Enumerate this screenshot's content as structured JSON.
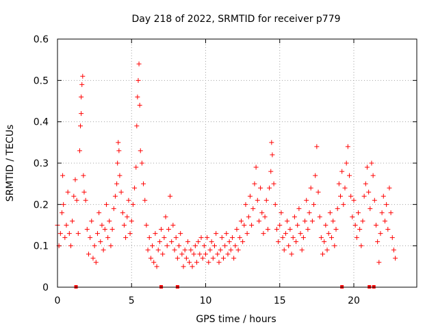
{
  "chart_data": {
    "type": "scatter",
    "title": "Day 218 of 2022, SRMTID for receiver p779",
    "xlabel": "GPS time / hours",
    "ylabel": "SRMTID / TECUs",
    "xlim": [
      0,
      24.25
    ],
    "ylim": [
      0,
      0.6
    ],
    "x_ticks": [
      "0",
      "5",
      "10",
      "15",
      "20"
    ],
    "x_tick_values": [
      0,
      5,
      10,
      15,
      20
    ],
    "y_ticks": [
      "0",
      "0.1",
      "0.2",
      "0.3",
      "0.4",
      "0.5",
      "0.6"
    ],
    "y_tick_values": [
      0,
      0.1,
      0.2,
      0.3,
      0.4,
      0.5,
      0.6
    ],
    "grid": true,
    "marker": "+",
    "color": "#ff0000",
    "series": [
      {
        "name": "SRMTID",
        "points": [
          [
            0.0,
            0.15
          ],
          [
            0.1,
            0.1
          ],
          [
            0.2,
            0.13
          ],
          [
            0.3,
            0.18
          ],
          [
            0.35,
            0.27
          ],
          [
            0.4,
            0.2
          ],
          [
            0.5,
            0.12
          ],
          [
            0.6,
            0.15
          ],
          [
            0.7,
            0.23
          ],
          [
            0.8,
            0.13
          ],
          [
            0.9,
            0.1
          ],
          [
            1.0,
            0.16
          ],
          [
            1.1,
            0.22
          ],
          [
            1.2,
            0.26
          ],
          [
            1.3,
            0.21
          ],
          [
            1.4,
            0.13
          ],
          [
            1.5,
            0.33
          ],
          [
            1.55,
            0.39
          ],
          [
            1.6,
            0.42
          ],
          [
            1.6,
            0.46
          ],
          [
            1.65,
            0.49
          ],
          [
            1.7,
            0.51
          ],
          [
            1.75,
            0.27
          ],
          [
            1.8,
            0.23
          ],
          [
            1.9,
            0.21
          ],
          [
            2.0,
            0.14
          ],
          [
            2.1,
            0.08
          ],
          [
            2.2,
            0.12
          ],
          [
            2.3,
            0.16
          ],
          [
            2.4,
            0.07
          ],
          [
            2.5,
            0.1
          ],
          [
            2.6,
            0.06
          ],
          [
            2.7,
            0.13
          ],
          [
            2.8,
            0.18
          ],
          [
            2.9,
            0.11
          ],
          [
            3.0,
            0.15
          ],
          [
            3.1,
            0.09
          ],
          [
            3.2,
            0.14
          ],
          [
            3.3,
            0.2
          ],
          [
            3.4,
            0.12
          ],
          [
            3.5,
            0.16
          ],
          [
            3.6,
            0.1
          ],
          [
            3.7,
            0.14
          ],
          [
            3.8,
            0.19
          ],
          [
            3.9,
            0.22
          ],
          [
            4.0,
            0.25
          ],
          [
            4.05,
            0.3
          ],
          [
            4.1,
            0.35
          ],
          [
            4.15,
            0.33
          ],
          [
            4.2,
            0.27
          ],
          [
            4.3,
            0.23
          ],
          [
            4.4,
            0.18
          ],
          [
            4.5,
            0.15
          ],
          [
            4.6,
            0.12
          ],
          [
            4.7,
            0.17
          ],
          [
            4.8,
            0.21
          ],
          [
            4.9,
            0.13
          ],
          [
            5.0,
            0.16
          ],
          [
            5.1,
            0.2
          ],
          [
            5.2,
            0.24
          ],
          [
            5.3,
            0.29
          ],
          [
            5.35,
            0.39
          ],
          [
            5.4,
            0.46
          ],
          [
            5.45,
            0.5
          ],
          [
            5.5,
            0.54
          ],
          [
            5.55,
            0.44
          ],
          [
            5.6,
            0.33
          ],
          [
            5.7,
            0.3
          ],
          [
            5.8,
            0.25
          ],
          [
            5.9,
            0.21
          ],
          [
            6.0,
            0.15
          ],
          [
            6.1,
            0.09
          ],
          [
            6.2,
            0.12
          ],
          [
            6.3,
            0.07
          ],
          [
            6.4,
            0.1
          ],
          [
            6.5,
            0.06
          ],
          [
            6.6,
            0.13
          ],
          [
            6.7,
            0.05
          ],
          [
            6.8,
            0.09
          ],
          [
            6.9,
            0.11
          ],
          [
            7.0,
            0.14
          ],
          [
            7.1,
            0.08
          ],
          [
            7.2,
            0.12
          ],
          [
            7.3,
            0.17
          ],
          [
            7.4,
            0.1
          ],
          [
            7.5,
            0.14
          ],
          [
            7.6,
            0.22
          ],
          [
            7.7,
            0.11
          ],
          [
            7.8,
            0.15
          ],
          [
            7.9,
            0.09
          ],
          [
            8.0,
            0.12
          ],
          [
            8.1,
            0.07
          ],
          [
            8.2,
            0.1
          ],
          [
            8.3,
            0.13
          ],
          [
            8.4,
            0.08
          ],
          [
            8.5,
            0.05
          ],
          [
            8.6,
            0.09
          ],
          [
            8.7,
            0.07
          ],
          [
            8.8,
            0.11
          ],
          [
            8.9,
            0.06
          ],
          [
            9.0,
            0.09
          ],
          [
            9.1,
            0.05
          ],
          [
            9.2,
            0.08
          ],
          [
            9.3,
            0.1
          ],
          [
            9.4,
            0.06
          ],
          [
            9.5,
            0.11
          ],
          [
            9.6,
            0.08
          ],
          [
            9.7,
            0.12
          ],
          [
            9.8,
            0.07
          ],
          [
            9.9,
            0.1
          ],
          [
            10.0,
            0.08
          ],
          [
            10.1,
            0.12
          ],
          [
            10.2,
            0.06
          ],
          [
            10.3,
            0.09
          ],
          [
            10.4,
            0.11
          ],
          [
            10.5,
            0.07
          ],
          [
            10.6,
            0.1
          ],
          [
            10.7,
            0.13
          ],
          [
            10.8,
            0.08
          ],
          [
            10.9,
            0.06
          ],
          [
            11.0,
            0.09
          ],
          [
            11.1,
            0.12
          ],
          [
            11.2,
            0.07
          ],
          [
            11.3,
            0.1
          ],
          [
            11.4,
            0.13
          ],
          [
            11.5,
            0.08
          ],
          [
            11.6,
            0.11
          ],
          [
            11.7,
            0.09
          ],
          [
            11.8,
            0.12
          ],
          [
            11.9,
            0.07
          ],
          [
            12.0,
            0.1
          ],
          [
            12.1,
            0.14
          ],
          [
            12.2,
            0.09
          ],
          [
            12.3,
            0.12
          ],
          [
            12.4,
            0.16
          ],
          [
            12.5,
            0.11
          ],
          [
            12.6,
            0.15
          ],
          [
            12.7,
            0.2
          ],
          [
            12.8,
            0.13
          ],
          [
            12.9,
            0.17
          ],
          [
            13.0,
            0.22
          ],
          [
            13.1,
            0.15
          ],
          [
            13.2,
            0.19
          ],
          [
            13.3,
            0.25
          ],
          [
            13.4,
            0.29
          ],
          [
            13.5,
            0.21
          ],
          [
            13.6,
            0.16
          ],
          [
            13.7,
            0.24
          ],
          [
            13.8,
            0.18
          ],
          [
            13.9,
            0.13
          ],
          [
            14.0,
            0.17
          ],
          [
            14.1,
            0.21
          ],
          [
            14.2,
            0.14
          ],
          [
            14.3,
            0.24
          ],
          [
            14.4,
            0.28
          ],
          [
            14.45,
            0.35
          ],
          [
            14.5,
            0.32
          ],
          [
            14.6,
            0.25
          ],
          [
            14.7,
            0.2
          ],
          [
            14.8,
            0.14
          ],
          [
            14.9,
            0.11
          ],
          [
            15.0,
            0.15
          ],
          [
            15.1,
            0.18
          ],
          [
            15.2,
            0.12
          ],
          [
            15.3,
            0.09
          ],
          [
            15.4,
            0.13
          ],
          [
            15.5,
            0.16
          ],
          [
            15.6,
            0.1
          ],
          [
            15.7,
            0.14
          ],
          [
            15.8,
            0.08
          ],
          [
            15.9,
            0.12
          ],
          [
            16.0,
            0.17
          ],
          [
            16.1,
            0.11
          ],
          [
            16.2,
            0.15
          ],
          [
            16.3,
            0.19
          ],
          [
            16.4,
            0.13
          ],
          [
            16.5,
            0.09
          ],
          [
            16.6,
            0.12
          ],
          [
            16.7,
            0.16
          ],
          [
            16.8,
            0.21
          ],
          [
            16.9,
            0.14
          ],
          [
            17.0,
            0.18
          ],
          [
            17.1,
            0.24
          ],
          [
            17.2,
            0.16
          ],
          [
            17.3,
            0.2
          ],
          [
            17.4,
            0.27
          ],
          [
            17.5,
            0.34
          ],
          [
            17.6,
            0.23
          ],
          [
            17.7,
            0.17
          ],
          [
            17.8,
            0.12
          ],
          [
            17.9,
            0.08
          ],
          [
            18.0,
            0.11
          ],
          [
            18.1,
            0.15
          ],
          [
            18.2,
            0.09
          ],
          [
            18.3,
            0.13
          ],
          [
            18.4,
            0.18
          ],
          [
            18.5,
            0.12
          ],
          [
            18.6,
            0.16
          ],
          [
            18.7,
            0.1
          ],
          [
            18.8,
            0.14
          ],
          [
            18.9,
            0.19
          ],
          [
            19.0,
            0.25
          ],
          [
            19.1,
            0.22
          ],
          [
            19.2,
            0.28
          ],
          [
            19.3,
            0.2
          ],
          [
            19.4,
            0.24
          ],
          [
            19.5,
            0.3
          ],
          [
            19.6,
            0.34
          ],
          [
            19.7,
            0.27
          ],
          [
            19.8,
            0.22
          ],
          [
            19.9,
            0.17
          ],
          [
            20.0,
            0.21
          ],
          [
            20.1,
            0.15
          ],
          [
            20.2,
            0.12
          ],
          [
            20.3,
            0.18
          ],
          [
            20.4,
            0.14
          ],
          [
            20.5,
            0.1
          ],
          [
            20.6,
            0.16
          ],
          [
            20.7,
            0.22
          ],
          [
            20.8,
            0.25
          ],
          [
            20.9,
            0.29
          ],
          [
            21.0,
            0.23
          ],
          [
            21.1,
            0.19
          ],
          [
            21.2,
            0.3
          ],
          [
            21.3,
            0.27
          ],
          [
            21.4,
            0.21
          ],
          [
            21.5,
            0.15
          ],
          [
            21.6,
            0.11
          ],
          [
            21.7,
            0.06
          ],
          [
            21.8,
            0.13
          ],
          [
            21.9,
            0.18
          ],
          [
            22.0,
            0.22
          ],
          [
            22.1,
            0.16
          ],
          [
            22.2,
            0.2
          ],
          [
            22.3,
            0.14
          ],
          [
            22.4,
            0.24
          ],
          [
            22.5,
            0.18
          ],
          [
            22.6,
            0.12
          ],
          [
            22.7,
            0.09
          ],
          [
            22.8,
            0.07
          ]
        ]
      }
    ],
    "gap_markers": [
      1.25,
      7.0,
      8.1,
      19.2,
      21.05,
      21.35
    ]
  }
}
